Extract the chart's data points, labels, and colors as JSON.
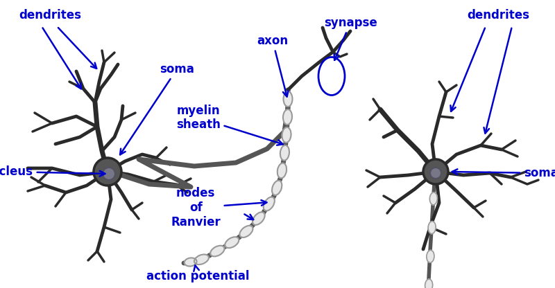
{
  "bg_color": "#ffffff",
  "label_color": "#0000cc",
  "neuron_dark": "#2a2a2a",
  "neuron_mid": "#555555",
  "myelin_fill": "#e8e8e8",
  "myelin_outline": "#999999",
  "nucleus_color": "#777788",
  "synapse_color": "#0000cc",
  "labels": {
    "dendrites_left": "dendrites",
    "soma_left": "soma",
    "nucleus": "nucleus",
    "axon": "axon",
    "myelin_sheath": "myelin\nsheath",
    "nodes_of_ranvier": "nodes\nof\nRanvier",
    "action_potential": "action potential",
    "synapse": "synapse",
    "dendrites_right": "dendrites",
    "soma_right": "soma"
  },
  "figsize": [
    8.0,
    4.16
  ],
  "dpi": 100
}
